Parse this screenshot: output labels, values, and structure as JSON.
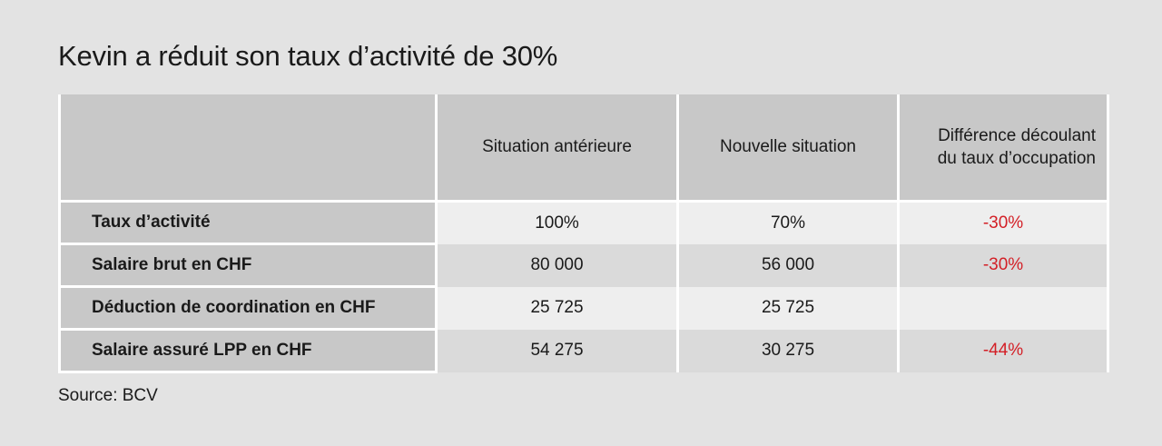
{
  "title": "Kevin a réduit son taux d’activité de 30%",
  "table": {
    "headers": [
      "",
      "Situation antérieure",
      "Nouvelle situation",
      "Différence découlant",
      "du taux d’occupation"
    ],
    "rows": [
      {
        "label": "Taux d’activité",
        "before": "100%",
        "after": "70%",
        "diff": "-30%"
      },
      {
        "label": "Salaire brut en CHF",
        "before": "80 000",
        "after": "56 000",
        "diff": "-30%"
      },
      {
        "label": "Déduction de coordination en CHF",
        "before": "25 725",
        "after": "25 725",
        "diff": ""
      },
      {
        "label": "Salaire assuré LPP en CHF",
        "before": "54 275",
        "after": "30 275",
        "diff": "-44%"
      }
    ]
  },
  "source": "Source: BCV",
  "colors": {
    "background": "#e3e3e3",
    "header_cell": "#c8c8c8",
    "light_row": "#eeeeee",
    "dark_row": "#dadada",
    "negative": "#d31f26"
  }
}
